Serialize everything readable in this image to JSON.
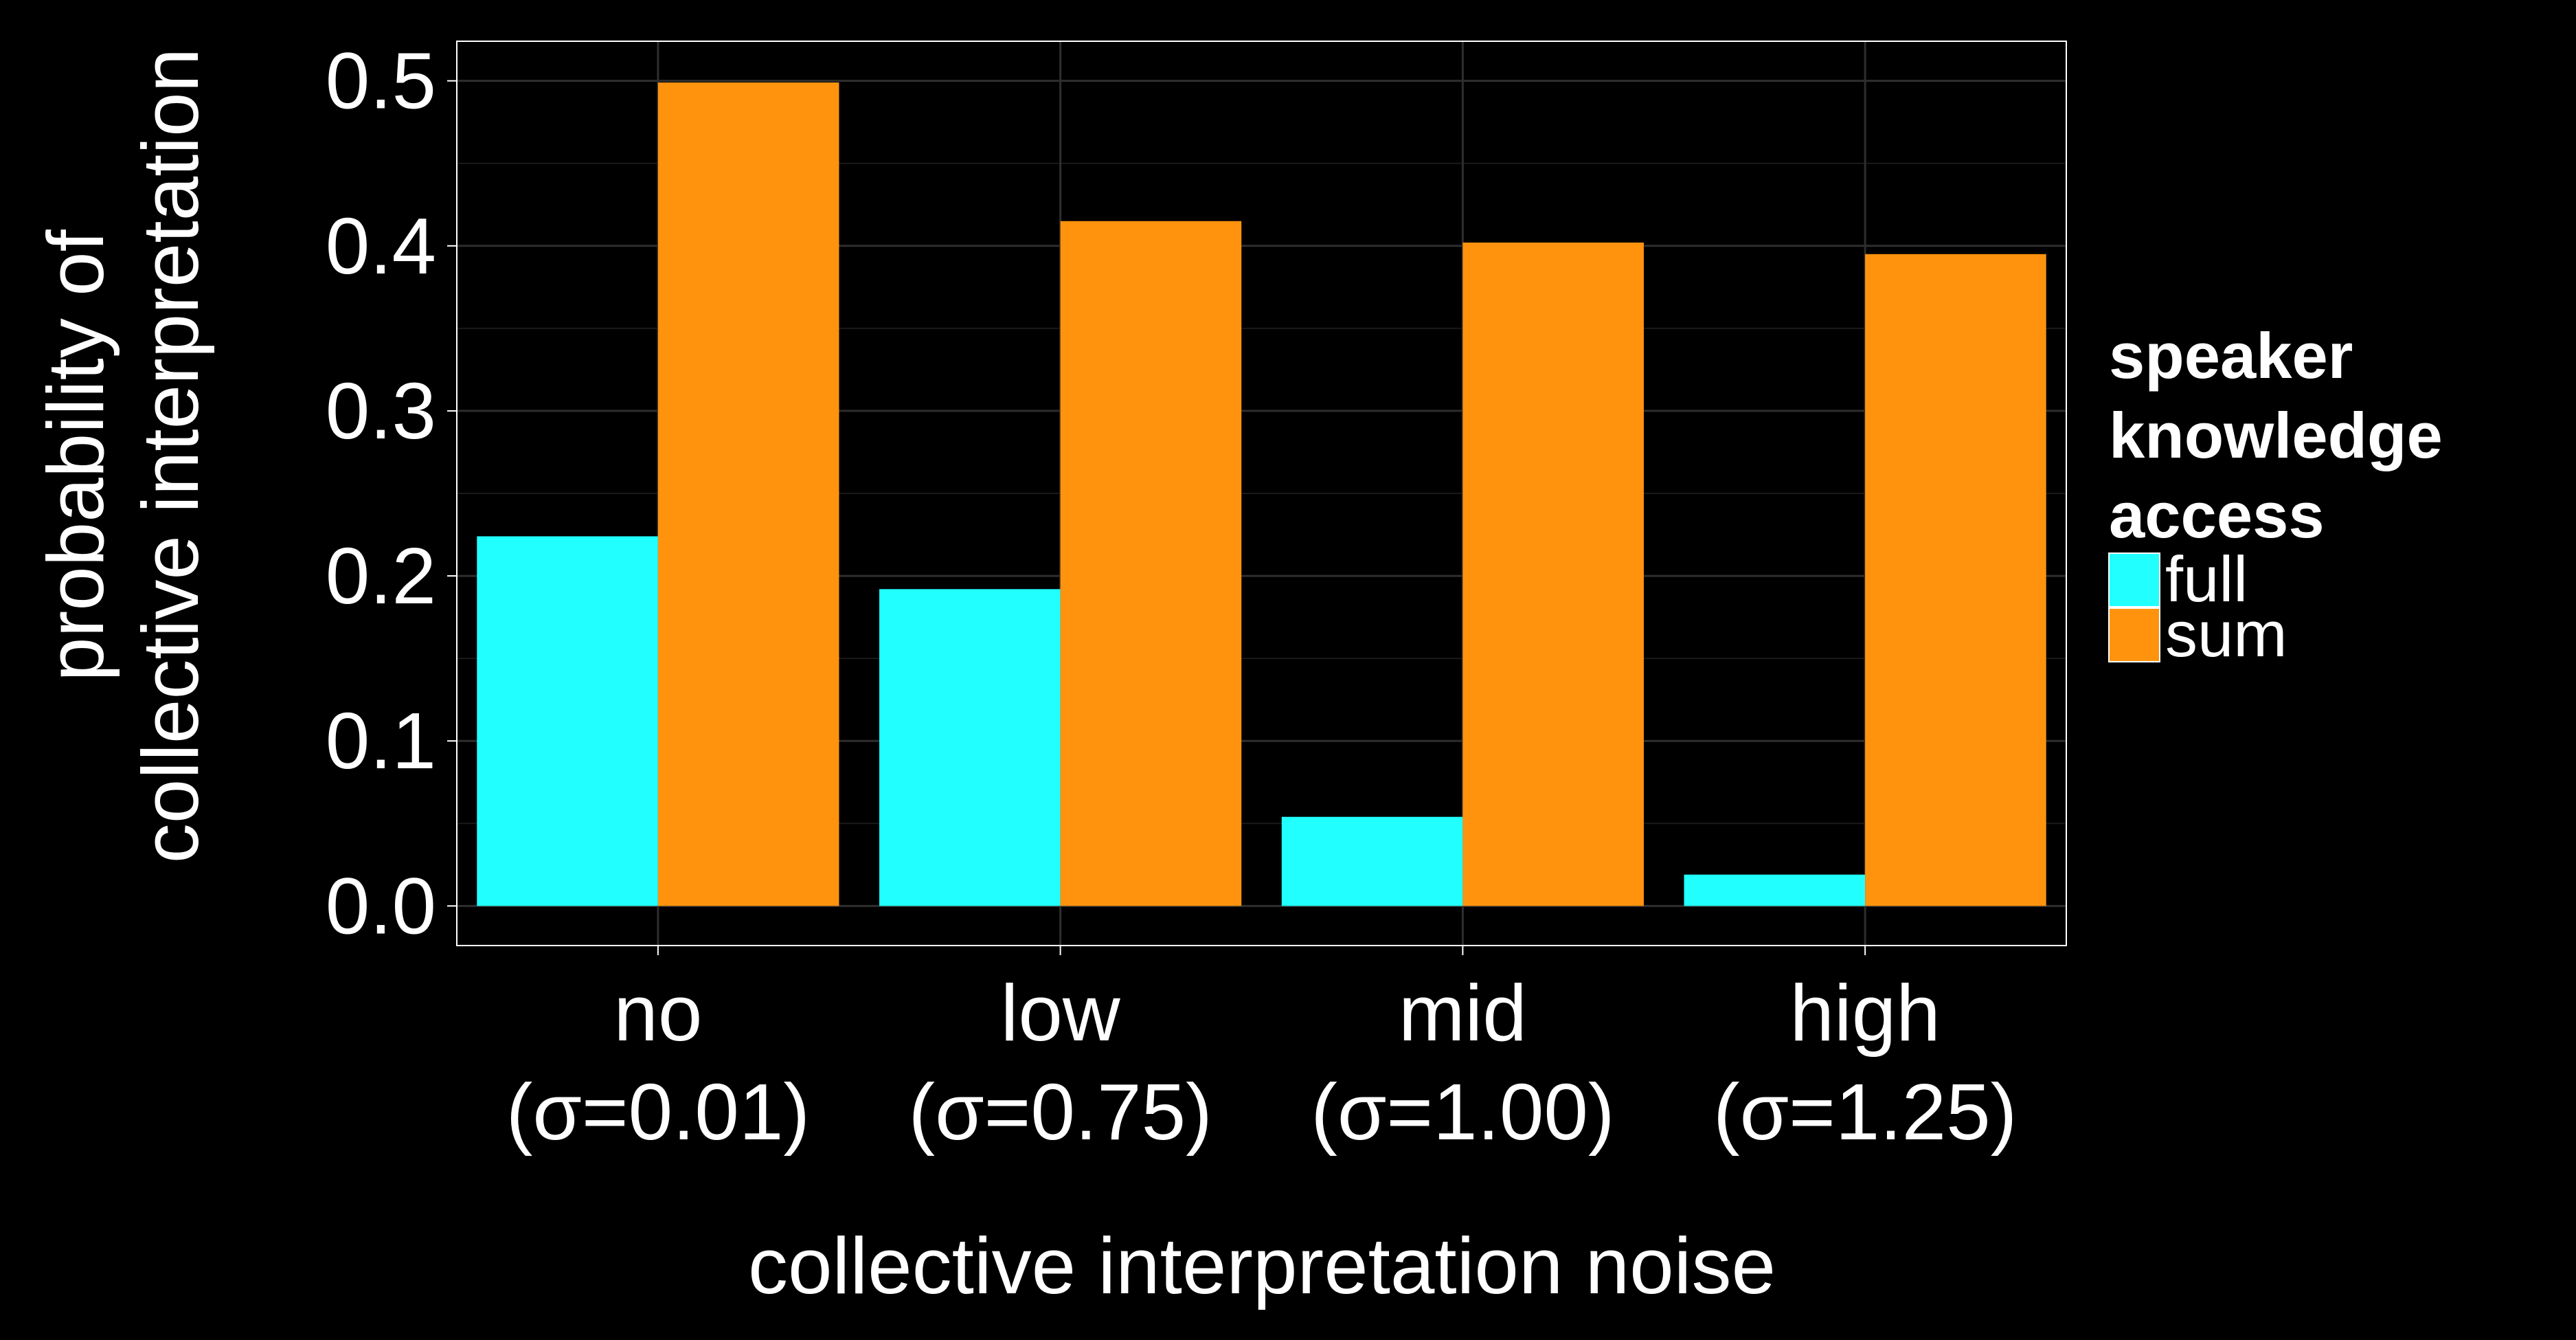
{
  "chart_data": {
    "type": "bar",
    "title": "",
    "xlabel": "collective interpretation noise",
    "ylabel_lines": [
      "probability of",
      "collective interpretation"
    ],
    "categories": [
      {
        "line1": "no",
        "line2": "(σ=0.01)"
      },
      {
        "line1": "low",
        "line2": "(σ=0.75)"
      },
      {
        "line1": "mid",
        "line2": "(σ=1.00)"
      },
      {
        "line1": "high",
        "line2": "(σ=1.25)"
      }
    ],
    "series": [
      {
        "name": "full",
        "color": "#21FFFF",
        "values": [
          0.224,
          0.192,
          0.054,
          0.019
        ]
      },
      {
        "name": "sum",
        "color": "#FF930E",
        "values": [
          0.499,
          0.415,
          0.402,
          0.395
        ]
      }
    ],
    "ylim": [
      -0.024,
      0.524
    ],
    "yticks": [
      "0.0",
      "0.1",
      "0.2",
      "0.3",
      "0.4",
      "0.5"
    ],
    "grid": true,
    "legend": {
      "title_lines": [
        "speaker",
        "knowledge",
        "access"
      ],
      "position": "right"
    }
  }
}
